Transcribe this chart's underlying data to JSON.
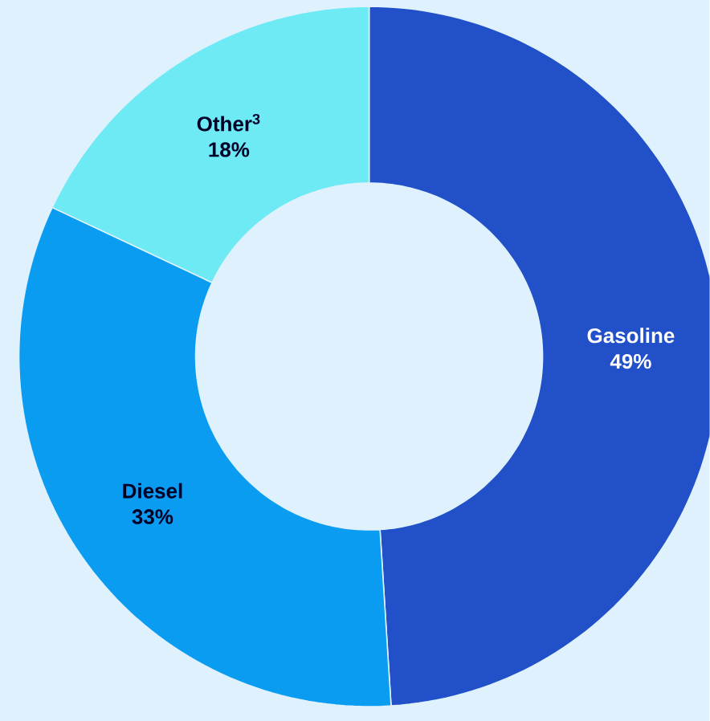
{
  "chart_data": {
    "type": "donut",
    "categories": [
      "Gasoline",
      "Diesel",
      "Other$^{3}$"
    ],
    "values": [
      49,
      33,
      18
    ],
    "colors": [
      "#2150c8",
      "#0a9cf0",
      "#6eeaf5"
    ],
    "value_labels": [
      "49%",
      "33%",
      "18%"
    ]
  }
}
